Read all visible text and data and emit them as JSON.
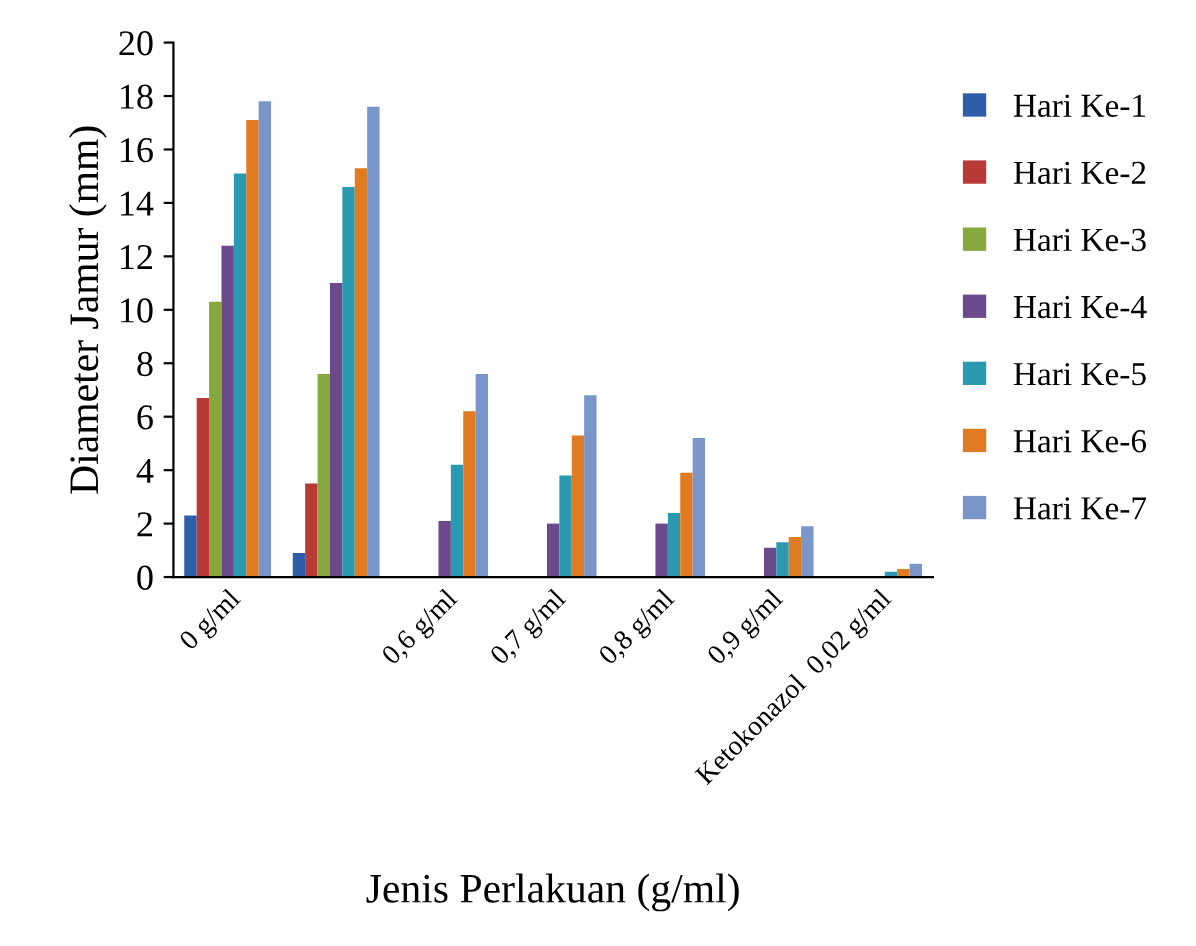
{
  "chart_data": {
    "type": "bar",
    "xlabel": "Jenis Perlakuan (g/ml)",
    "ylabel": "Diameter Jamur (mm)",
    "categories": [
      "0 g/ml",
      null,
      "0,6 g/ml",
      "0,7 g/ml",
      "0,8 g/ml",
      "0,9 g/ml",
      "Ketokonazol  0,02 g/ml"
    ],
    "series": [
      {
        "name": "Hari Ke-1",
        "color": "#2e5ea8",
        "values": [
          2.3,
          0.9,
          0,
          0,
          0,
          0,
          0
        ]
      },
      {
        "name": "Hari Ke-2",
        "color": "#b83a36",
        "values": [
          6.7,
          3.5,
          0,
          0,
          0,
          0,
          0
        ]
      },
      {
        "name": "Hari Ke-3",
        "color": "#86a83c",
        "values": [
          10.3,
          7.6,
          0,
          0,
          0,
          0,
          0
        ]
      },
      {
        "name": "Hari Ke-4",
        "color": "#6a4a8c",
        "values": [
          12.4,
          11.0,
          2.1,
          2.0,
          2.0,
          1.1,
          0
        ]
      },
      {
        "name": "Hari Ke-5",
        "color": "#2b9ab0",
        "values": [
          15.1,
          14.6,
          4.2,
          3.8,
          2.4,
          1.3,
          0.2
        ]
      },
      {
        "name": "Hari Ke-6",
        "color": "#e07b22",
        "values": [
          17.1,
          15.3,
          6.2,
          5.3,
          3.9,
          1.5,
          0.3
        ]
      },
      {
        "name": "Hari Ke-7",
        "color": "#7a96c8",
        "values": [
          17.8,
          17.6,
          7.6,
          6.8,
          5.2,
          1.9,
          0.5
        ]
      }
    ],
    "ylim": [
      0,
      20
    ],
    "yticks": [
      0,
      2,
      4,
      6,
      8,
      10,
      12,
      14,
      16,
      18,
      20
    ],
    "grid": false,
    "legend": "right"
  }
}
